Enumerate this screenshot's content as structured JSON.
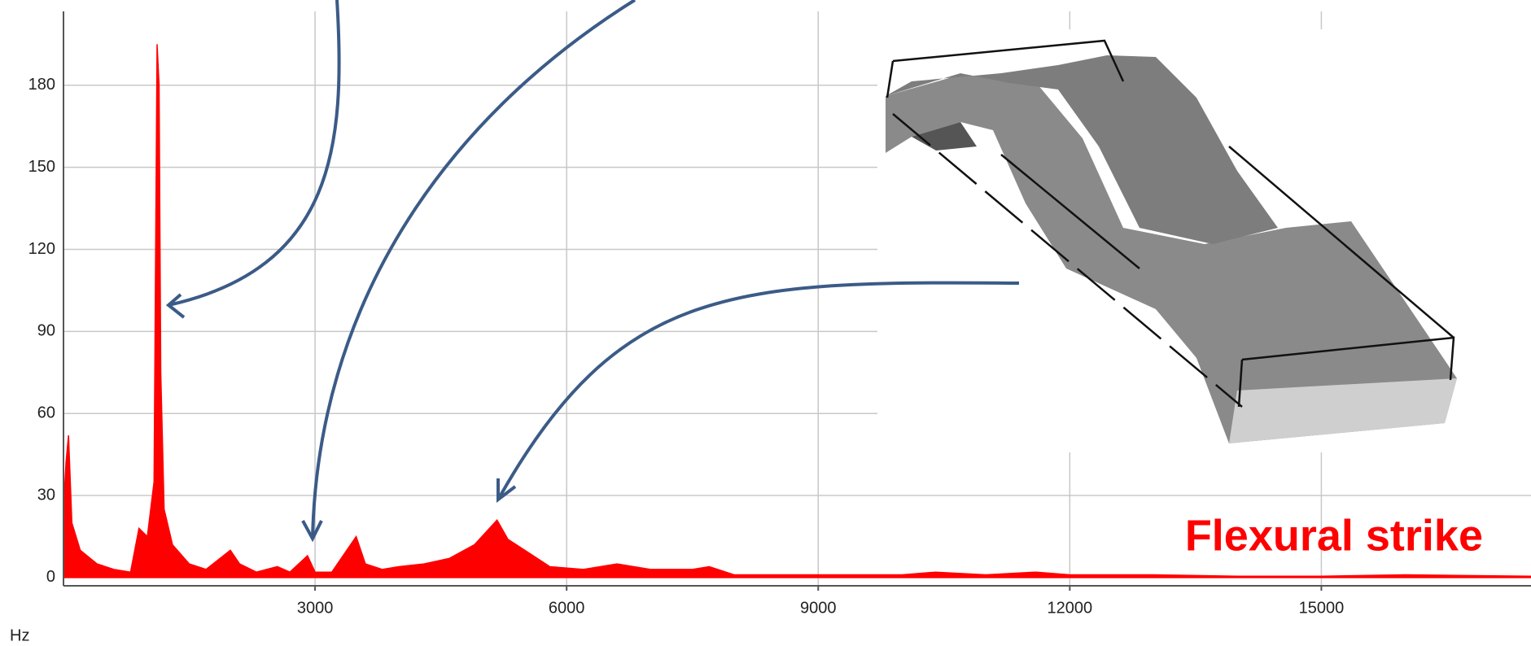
{
  "chart_data": {
    "type": "area",
    "x_label": "Hz",
    "annotation": "Flexural strike",
    "x": [
      0,
      30,
      60,
      100,
      200,
      400,
      600,
      800,
      900,
      1000,
      1080,
      1116,
      1140,
      1160,
      1200,
      1300,
      1500,
      1700,
      1990,
      2100,
      2300,
      2550,
      2700,
      2910,
      3000,
      3200,
      3490,
      3600,
      3800,
      4000,
      4300,
      4600,
      4900,
      5170,
      5300,
      5500,
      5800,
      6200,
      6600,
      7000,
      7500,
      7700,
      8000,
      9000,
      10000,
      10400,
      11000,
      11600,
      12000,
      13000,
      14000,
      15000,
      16000,
      17500
    ],
    "values": [
      25,
      42,
      52,
      20,
      10,
      5,
      3,
      2,
      18,
      15,
      35,
      195,
      180,
      75,
      25,
      12,
      5,
      3,
      10,
      5,
      2,
      4,
      2,
      8,
      2,
      2,
      15,
      5,
      3,
      4,
      5,
      7,
      12,
      21,
      14,
      10,
      4,
      3,
      5,
      3,
      3,
      4,
      1,
      1,
      1,
      2,
      1,
      2,
      1,
      1,
      0.5,
      0.5,
      1,
      0.5
    ],
    "color": "#ff0000",
    "xlim": [
      0,
      17500
    ],
    "ylim": [
      -3,
      207
    ],
    "xticks": [
      3000,
      6000,
      9000,
      12000,
      15000
    ],
    "yticks": [
      0,
      30,
      60,
      90,
      120,
      150,
      180
    ],
    "grid": true
  }
}
